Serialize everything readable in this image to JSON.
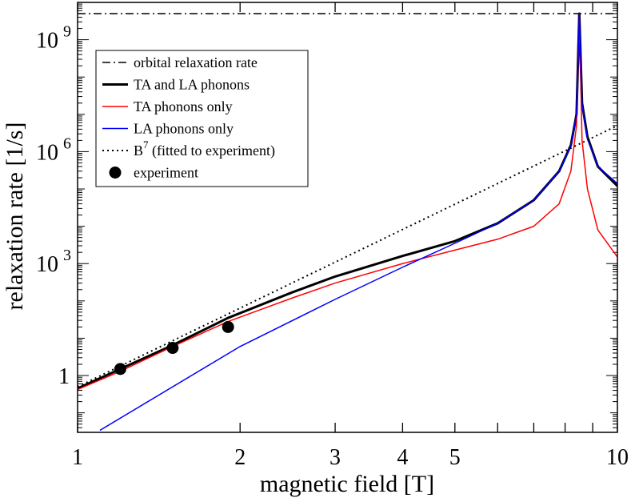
{
  "chart_data": {
    "type": "line",
    "xlabel": "magnetic field [T]",
    "ylabel": "relaxation rate [1/s]",
    "xscale": "log",
    "yscale": "log",
    "xlim": [
      1,
      10
    ],
    "ylim": [
      0.03,
      10000000000
    ],
    "x_ticks": [
      {
        "value": 1,
        "label": "1"
      },
      {
        "value": 2,
        "label": "2"
      },
      {
        "value": 3,
        "label": "3"
      },
      {
        "value": 4,
        "label": "4"
      },
      {
        "value": 5,
        "label": "5"
      },
      {
        "value": 10,
        "label": "10"
      }
    ],
    "y_ticks": [
      {
        "value": 1,
        "label": "1"
      },
      {
        "value": 1000,
        "label": "10",
        "exp": "3"
      },
      {
        "value": 1000000,
        "label": "10",
        "exp": "6"
      },
      {
        "value": 1000000000,
        "label": "10",
        "exp": "9"
      }
    ],
    "legend_position": "top-left",
    "legend": [
      {
        "label": "orbital relaxation rate",
        "style": "dashdot",
        "color": "#000000"
      },
      {
        "label": "TA and LA phonons",
        "style": "solid-thick",
        "color": "#000000"
      },
      {
        "label": "TA phonons only",
        "style": "solid",
        "color": "#ff0000"
      },
      {
        "label": "LA phonons only",
        "style": "solid",
        "color": "#0000ff"
      },
      {
        "label": "B",
        "sup": "7",
        "label_rest": " (fitted to experiment)",
        "style": "dotted",
        "color": "#000000"
      },
      {
        "label": "experiment",
        "style": "marker",
        "color": "#000000"
      }
    ],
    "series": [
      {
        "name": "orbital relaxation rate",
        "style": "dashdot",
        "color": "#000000",
        "x": [
          1,
          10
        ],
        "y": [
          5000000000,
          5000000000
        ]
      },
      {
        "name": "TA and LA phonons",
        "style": "solid-thick",
        "color": "#000000",
        "x": [
          1,
          1.2,
          1.5,
          1.9,
          2.5,
          3,
          4,
          5,
          6,
          7,
          7.8,
          8.2,
          8.4,
          8.5,
          8.6,
          8.8,
          9.2,
          10
        ],
        "y": [
          0.45,
          1.5,
          6.5,
          35,
          170,
          450,
          1600,
          4000,
          12000,
          50000,
          300000,
          1500000,
          10000000,
          5000000000,
          20000000,
          2500000,
          400000,
          120000
        ]
      },
      {
        "name": "TA phonons only",
        "style": "solid",
        "color": "#ff0000",
        "x": [
          1,
          1.2,
          1.5,
          1.9,
          2.5,
          3,
          4,
          5,
          6,
          7,
          7.8,
          8.2,
          8.4,
          8.5,
          8.6,
          8.8,
          9.2,
          10
        ],
        "y": [
          0.42,
          1.3,
          6,
          28,
          120,
          300,
          1000,
          2300,
          4500,
          10000,
          40000,
          300000,
          5000000,
          5000000000,
          2000000,
          100000,
          8000,
          1500
        ]
      },
      {
        "name": "LA phonons only",
        "style": "solid",
        "color": "#0000ff",
        "x": [
          1.1,
          2,
          3,
          4,
          5,
          6,
          7,
          7.8,
          8.2,
          8.4,
          8.5,
          8.6,
          8.8,
          9.2,
          10
        ],
        "y": [
          0.034,
          6,
          110,
          800,
          3500,
          12000,
          50000,
          300000,
          1400000,
          10000000,
          5000000000,
          18000000,
          2200000,
          400000,
          140000
        ]
      },
      {
        "name": "B^7 (fitted to experiment)",
        "style": "dotted",
        "color": "#000000",
        "x": [
          1,
          10
        ],
        "y": [
          0.5,
          5000000
        ]
      }
    ],
    "experiment": {
      "name": "experiment",
      "x": [
        1.2,
        1.5,
        1.9
      ],
      "y": [
        1.5,
        5.5,
        20
      ]
    }
  }
}
